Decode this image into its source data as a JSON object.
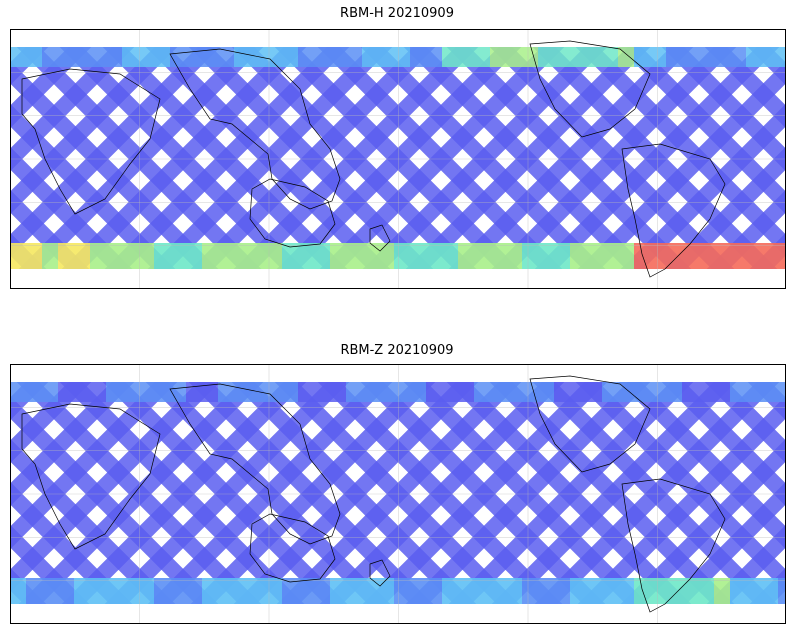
{
  "panels": [
    {
      "title": "RBM-H 20210909",
      "intensity": "high"
    },
    {
      "title": "RBM-Z 20210909",
      "intensity": "low"
    }
  ],
  "colormap": [
    "#5a5ef0",
    "#5b8ff5",
    "#5ec0f5",
    "#6ee8c8",
    "#a8f08a",
    "#f5e860",
    "#f7a650",
    "#f56a5a"
  ],
  "map": {
    "projection": "plate-carree",
    "gridlines": true,
    "coastlines": true
  }
}
